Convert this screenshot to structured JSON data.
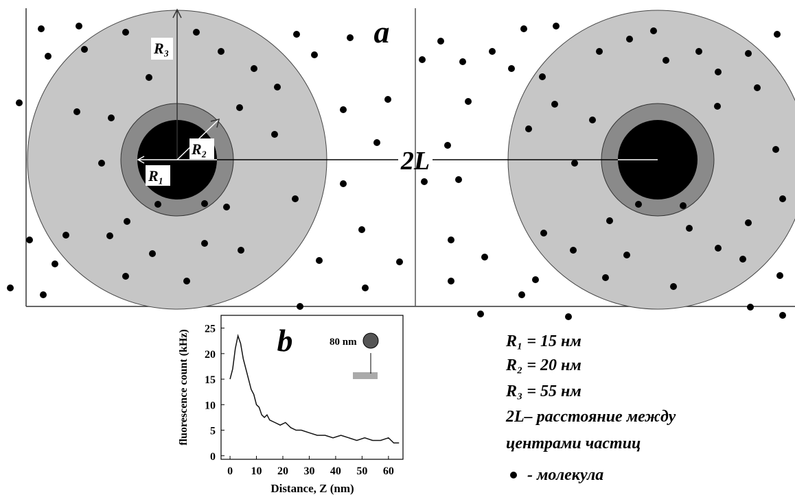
{
  "diagram": {
    "label": "a",
    "r3": "R₃",
    "r2": "R₂",
    "r1": "R₁",
    "distance": "2L"
  },
  "chart_data": {
    "type": "line",
    "label": "b",
    "inset_label": "80 nm",
    "x_label": "Distance, Z (nm)",
    "y_label": "fluorescence count (kHz)",
    "x": [
      0,
      1,
      2,
      3,
      4,
      5,
      6,
      7,
      8,
      9,
      10,
      11,
      12,
      13,
      14,
      15,
      17,
      19,
      21,
      23,
      25,
      27,
      30,
      33,
      36,
      39,
      42,
      45,
      48,
      51,
      54,
      57,
      60,
      62,
      64
    ],
    "values": [
      15,
      17,
      21,
      23.5,
      22,
      19,
      17,
      15,
      13,
      12,
      10,
      9.5,
      8,
      7.5,
      8,
      7,
      6.5,
      6,
      6.5,
      5.5,
      5,
      5,
      4.5,
      4,
      4,
      3.5,
      4,
      3.5,
      3,
      3.5,
      3,
      3,
      3.5,
      2.5,
      2.5
    ],
    "color": "#111",
    "xlim": [
      -3.4,
      65.5
    ],
    "ylim": [
      -0.7,
      27.5
    ],
    "xticks": [
      0,
      10,
      20,
      30,
      40,
      50,
      60
    ],
    "yticks": [
      0,
      5,
      10,
      15,
      20,
      25
    ]
  },
  "legend": {
    "items": [
      "R₁ = 15 нм",
      "R₂ = 20 нм",
      "R₃ = 55 нм",
      "2L– расстояние между",
      "центрами частиц"
    ],
    "molecule": "- молекула"
  }
}
